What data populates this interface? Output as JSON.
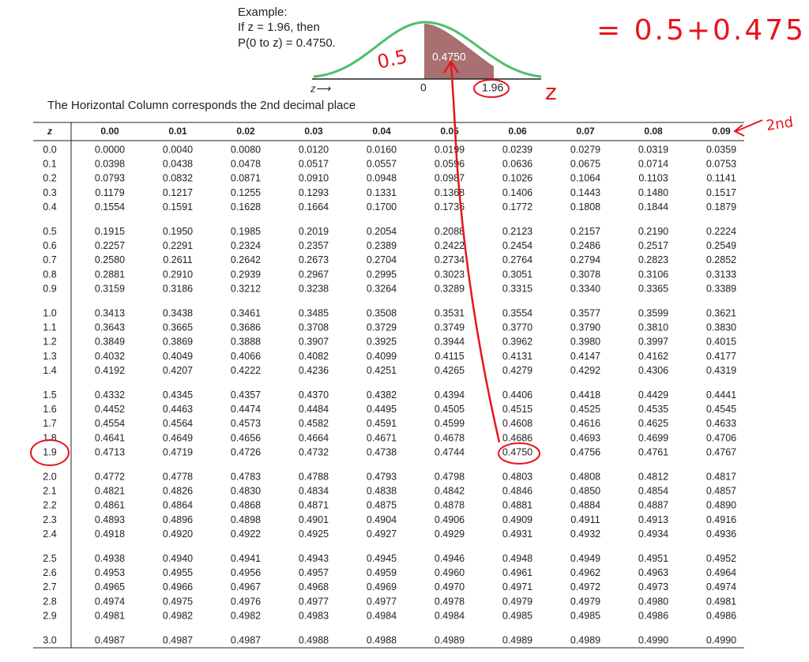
{
  "example": {
    "title": "Example:",
    "line1": "If z = 1.96, then",
    "line2": "P(0 to z) = 0.4750."
  },
  "curve": {
    "area_label": "0.4750",
    "zero": "0",
    "z_value": "1.96",
    "axis_label": "z⟶"
  },
  "handwritten": {
    "half": "0.5",
    "z": "z",
    "sum": "= 0.5+0.475",
    "second": "2nd"
  },
  "caption": "The Horizontal Column corresponds the 2nd decimal place",
  "table": {
    "header": [
      "z",
      "0.00",
      "0.01",
      "0.02",
      "0.03",
      "0.04",
      "0.05",
      "0.06",
      "0.07",
      "0.08",
      "0.09"
    ],
    "rows": [
      [
        "0.0",
        "0.0000",
        "0.0040",
        "0.0080",
        "0.0120",
        "0.0160",
        "0.0199",
        "0.0239",
        "0.0279",
        "0.0319",
        "0.0359"
      ],
      [
        "0.1",
        "0.0398",
        "0.0438",
        "0.0478",
        "0.0517",
        "0.0557",
        "0.0596",
        "0.0636",
        "0.0675",
        "0.0714",
        "0.0753"
      ],
      [
        "0.2",
        "0.0793",
        "0.0832",
        "0.0871",
        "0.0910",
        "0.0948",
        "0.0987",
        "0.1026",
        "0.1064",
        "0.1103",
        "0.1141"
      ],
      [
        "0.3",
        "0.1179",
        "0.1217",
        "0.1255",
        "0.1293",
        "0.1331",
        "0.1368",
        "0.1406",
        "0.1443",
        "0.1480",
        "0.1517"
      ],
      [
        "0.4",
        "0.1554",
        "0.1591",
        "0.1628",
        "0.1664",
        "0.1700",
        "0.1736",
        "0.1772",
        "0.1808",
        "0.1844",
        "0.1879"
      ],
      [
        "0.5",
        "0.1915",
        "0.1950",
        "0.1985",
        "0.2019",
        "0.2054",
        "0.2088",
        "0.2123",
        "0.2157",
        "0.2190",
        "0.2224"
      ],
      [
        "0.6",
        "0.2257",
        "0.2291",
        "0.2324",
        "0.2357",
        "0.2389",
        "0.2422",
        "0.2454",
        "0.2486",
        "0.2517",
        "0.2549"
      ],
      [
        "0.7",
        "0.2580",
        "0.2611",
        "0.2642",
        "0.2673",
        "0.2704",
        "0.2734",
        "0.2764",
        "0.2794",
        "0.2823",
        "0.2852"
      ],
      [
        "0.8",
        "0.2881",
        "0.2910",
        "0.2939",
        "0.2967",
        "0.2995",
        "0.3023",
        "0.3051",
        "0.3078",
        "0.3106",
        "0.3133"
      ],
      [
        "0.9",
        "0.3159",
        "0.3186",
        "0.3212",
        "0.3238",
        "0.3264",
        "0.3289",
        "0.3315",
        "0.3340",
        "0.3365",
        "0.3389"
      ],
      [
        "1.0",
        "0.3413",
        "0.3438",
        "0.3461",
        "0.3485",
        "0.3508",
        "0.3531",
        "0.3554",
        "0.3577",
        "0.3599",
        "0.3621"
      ],
      [
        "1.1",
        "0.3643",
        "0.3665",
        "0.3686",
        "0.3708",
        "0.3729",
        "0.3749",
        "0.3770",
        "0.3790",
        "0.3810",
        "0.3830"
      ],
      [
        "1.2",
        "0.3849",
        "0.3869",
        "0.3888",
        "0.3907",
        "0.3925",
        "0.3944",
        "0.3962",
        "0.3980",
        "0.3997",
        "0.4015"
      ],
      [
        "1.3",
        "0.4032",
        "0.4049",
        "0.4066",
        "0.4082",
        "0.4099",
        "0.4115",
        "0.4131",
        "0.4147",
        "0.4162",
        "0.4177"
      ],
      [
        "1.4",
        "0.4192",
        "0.4207",
        "0.4222",
        "0.4236",
        "0.4251",
        "0.4265",
        "0.4279",
        "0.4292",
        "0.4306",
        "0.4319"
      ],
      [
        "1.5",
        "0.4332",
        "0.4345",
        "0.4357",
        "0.4370",
        "0.4382",
        "0.4394",
        "0.4406",
        "0.4418",
        "0.4429",
        "0.4441"
      ],
      [
        "1.6",
        "0.4452",
        "0.4463",
        "0.4474",
        "0.4484",
        "0.4495",
        "0.4505",
        "0.4515",
        "0.4525",
        "0.4535",
        "0.4545"
      ],
      [
        "1.7",
        "0.4554",
        "0.4564",
        "0.4573",
        "0.4582",
        "0.4591",
        "0.4599",
        "0.4608",
        "0.4616",
        "0.4625",
        "0.4633"
      ],
      [
        "1.8",
        "0.4641",
        "0.4649",
        "0.4656",
        "0.4664",
        "0.4671",
        "0.4678",
        "0.4686",
        "0.4693",
        "0.4699",
        "0.4706"
      ],
      [
        "1.9",
        "0.4713",
        "0.4719",
        "0.4726",
        "0.4732",
        "0.4738",
        "0.4744",
        "0.4750",
        "0.4756",
        "0.4761",
        "0.4767"
      ],
      [
        "2.0",
        "0.4772",
        "0.4778",
        "0.4783",
        "0.4788",
        "0.4793",
        "0.4798",
        "0.4803",
        "0.4808",
        "0.4812",
        "0.4817"
      ],
      [
        "2.1",
        "0.4821",
        "0.4826",
        "0.4830",
        "0.4834",
        "0.4838",
        "0.4842",
        "0.4846",
        "0.4850",
        "0.4854",
        "0.4857"
      ],
      [
        "2.2",
        "0.4861",
        "0.4864",
        "0.4868",
        "0.4871",
        "0.4875",
        "0.4878",
        "0.4881",
        "0.4884",
        "0.4887",
        "0.4890"
      ],
      [
        "2.3",
        "0.4893",
        "0.4896",
        "0.4898",
        "0.4901",
        "0.4904",
        "0.4906",
        "0.4909",
        "0.4911",
        "0.4913",
        "0.4916"
      ],
      [
        "2.4",
        "0.4918",
        "0.4920",
        "0.4922",
        "0.4925",
        "0.4927",
        "0.4929",
        "0.4931",
        "0.4932",
        "0.4934",
        "0.4936"
      ],
      [
        "2.5",
        "0.4938",
        "0.4940",
        "0.4941",
        "0.4943",
        "0.4945",
        "0.4946",
        "0.4948",
        "0.4949",
        "0.4951",
        "0.4952"
      ],
      [
        "2.6",
        "0.4953",
        "0.4955",
        "0.4956",
        "0.4957",
        "0.4959",
        "0.4960",
        "0.4961",
        "0.4962",
        "0.4963",
        "0.4964"
      ],
      [
        "2.7",
        "0.4965",
        "0.4966",
        "0.4967",
        "0.4968",
        "0.4969",
        "0.4970",
        "0.4971",
        "0.4972",
        "0.4973",
        "0.4974"
      ],
      [
        "2.8",
        "0.4974",
        "0.4975",
        "0.4976",
        "0.4977",
        "0.4977",
        "0.4978",
        "0.4979",
        "0.4979",
        "0.4980",
        "0.4981"
      ],
      [
        "2.9",
        "0.4981",
        "0.4982",
        "0.4982",
        "0.4983",
        "0.4984",
        "0.4984",
        "0.4985",
        "0.4985",
        "0.4986",
        "0.4986"
      ],
      [
        "3.0",
        "0.4987",
        "0.4987",
        "0.4987",
        "0.4988",
        "0.4988",
        "0.4989",
        "0.4989",
        "0.4989",
        "0.4990",
        "0.4990"
      ]
    ]
  }
}
